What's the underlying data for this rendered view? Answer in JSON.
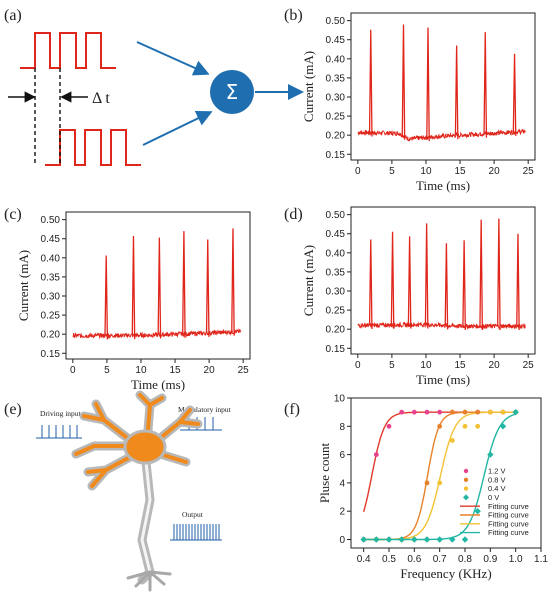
{
  "panel_labels": [
    "(a)",
    "(b)",
    "(c)",
    "(d)",
    "(e)",
    "(f)"
  ],
  "panel_a": {
    "delta_label": "Δ t",
    "sum_symbol": "Σ",
    "colors": {
      "pulse": "#e0251b",
      "sum": "#1f6fb0",
      "arrow": "#1f6fb0"
    }
  },
  "panel_e": {
    "driving": "Driving input",
    "modulatory": "Modulatory input",
    "output": "Output",
    "neuron_color": "#f08a1c"
  },
  "chart_data": [
    {
      "id": "b",
      "type": "line",
      "xlabel": "Time (ms)",
      "ylabel": "Current (mA)",
      "xlim": [
        -1,
        26
      ],
      "ylim": [
        0.135,
        0.52
      ],
      "xticks": [
        0,
        5,
        10,
        15,
        20,
        25
      ],
      "yticks": [
        0.15,
        0.2,
        0.25,
        0.3,
        0.35,
        0.4,
        0.45,
        0.5
      ],
      "color": "#e0251b",
      "x_end": 24.6,
      "baseline": [
        [
          0,
          0.207
        ],
        [
          6,
          0.205
        ],
        [
          7.5,
          0.19
        ],
        [
          12,
          0.197
        ],
        [
          18,
          0.203
        ],
        [
          24.6,
          0.21
        ]
      ],
      "spikes": [
        [
          1.9,
          0.476
        ],
        [
          6.7,
          0.49
        ],
        [
          10.3,
          0.482
        ],
        [
          14.5,
          0.435
        ],
        [
          18.7,
          0.47
        ],
        [
          23,
          0.413
        ]
      ]
    },
    {
      "id": "c",
      "type": "line",
      "xlabel": "Time (ms)",
      "ylabel": "Current (mA)",
      "xlim": [
        -1,
        26
      ],
      "ylim": [
        0.135,
        0.52
      ],
      "xticks": [
        0,
        5,
        10,
        15,
        20,
        25
      ],
      "yticks": [
        0.15,
        0.2,
        0.25,
        0.3,
        0.35,
        0.4,
        0.45,
        0.5
      ],
      "color": "#e0251b",
      "x_end": 24.6,
      "baseline": [
        [
          0,
          0.196
        ],
        [
          10,
          0.197
        ],
        [
          20,
          0.203
        ],
        [
          24.6,
          0.207
        ]
      ],
      "spikes": [
        [
          4.9,
          0.406
        ],
        [
          8.9,
          0.457
        ],
        [
          12.7,
          0.453
        ],
        [
          16.3,
          0.47
        ],
        [
          19.8,
          0.448
        ],
        [
          23.5,
          0.477
        ]
      ]
    },
    {
      "id": "d",
      "type": "line",
      "xlabel": "Time (ms)",
      "ylabel": "Current (mA)",
      "xlim": [
        -1,
        26
      ],
      "ylim": [
        0.135,
        0.52
      ],
      "xticks": [
        0,
        5,
        10,
        15,
        20,
        25
      ],
      "yticks": [
        0.15,
        0.2,
        0.25,
        0.3,
        0.35,
        0.4,
        0.45,
        0.5
      ],
      "color": "#e0251b",
      "x_end": 24.6,
      "baseline": [
        [
          0,
          0.21
        ],
        [
          10,
          0.212
        ],
        [
          15,
          0.208
        ],
        [
          24.6,
          0.208
        ]
      ],
      "spikes": [
        [
          1.9,
          0.435
        ],
        [
          5.1,
          0.455
        ],
        [
          7.6,
          0.443
        ],
        [
          10.1,
          0.477
        ],
        [
          13,
          0.425
        ],
        [
          15.6,
          0.433
        ],
        [
          18.1,
          0.487
        ],
        [
          20.7,
          0.49
        ],
        [
          23.5,
          0.45
        ]
      ]
    },
    {
      "id": "f",
      "type": "scatter",
      "xlabel": "Frequency (KHz)",
      "ylabel": "Pluse count",
      "xlim": [
        0.35,
        1.1
      ],
      "ylim": [
        -0.6,
        10
      ],
      "xticks": [
        0.4,
        0.5,
        0.6,
        0.7,
        0.8,
        0.9,
        1.0,
        1.1
      ],
      "yticks": [
        0,
        2,
        4,
        6,
        8,
        10
      ],
      "series": [
        {
          "name": "1.2 V",
          "color": "#e8428f",
          "x": [
            0.4,
            0.45,
            0.5,
            0.55,
            0.6,
            0.65,
            0.7,
            0.75,
            0.8,
            0.85,
            0.9,
            0.95,
            1.0
          ],
          "y": [
            0,
            6,
            8,
            9,
            9,
            9,
            9,
            9,
            9,
            9,
            9,
            9,
            9
          ]
        },
        {
          "name": "0.8 V",
          "color": "#e8822a",
          "x": [
            0.4,
            0.45,
            0.5,
            0.55,
            0.6,
            0.65,
            0.7,
            0.75,
            0.8,
            0.85,
            0.9,
            0.95,
            1.0
          ],
          "y": [
            0,
            0,
            0,
            0,
            0,
            4,
            8,
            9,
            9,
            9,
            9,
            9,
            9
          ]
        },
        {
          "name": "0.4 V",
          "color": "#f2c233",
          "x": [
            0.4,
            0.45,
            0.5,
            0.55,
            0.6,
            0.65,
            0.7,
            0.75,
            0.8,
            0.85,
            0.9,
            0.95,
            1.0
          ],
          "y": [
            0,
            0,
            0,
            0,
            0,
            0,
            4,
            7,
            8,
            8,
            9,
            9,
            9
          ]
        },
        {
          "name": "0 V",
          "color": "#22b6a4",
          "x": [
            0.4,
            0.45,
            0.5,
            0.55,
            0.6,
            0.65,
            0.7,
            0.75,
            0.8,
            0.85,
            0.9,
            0.95,
            1.0
          ],
          "y": [
            0,
            0,
            0,
            0,
            0,
            0,
            0,
            0,
            0,
            2,
            6,
            8,
            9
          ]
        }
      ],
      "fits": [
        {
          "name": "Fitting curve",
          "color": "#e03a2c",
          "x0": 0.432,
          "k": 40
        },
        {
          "name": "Fitting curve",
          "color": "#e8822a",
          "x0": 0.652,
          "k": 45
        },
        {
          "name": "Fitting curve",
          "color": "#f2c233",
          "x0": 0.703,
          "k": 35
        },
        {
          "name": "Fitting curve",
          "color": "#22b6a4",
          "x0": 0.875,
          "k": 33
        }
      ],
      "fit_max": 9
    }
  ]
}
